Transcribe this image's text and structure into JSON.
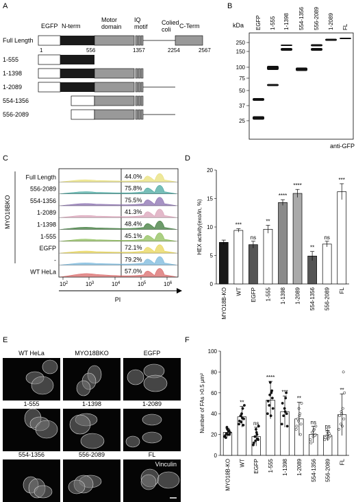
{
  "panel_letters": [
    "A",
    "B",
    "C",
    "D",
    "E",
    "F"
  ],
  "panel_a": {
    "domain_labels": [
      "EGFP",
      "N-term",
      "Motor domain",
      "IQ motif",
      "Colied coli",
      "C-Term"
    ],
    "full_length_label": "Full Length",
    "positions": [
      "1",
      "556",
      "1357",
      "2254",
      "2567"
    ],
    "constructs": [
      "1-555",
      "1-1398",
      "1-2089",
      "554-1356",
      "556-2089"
    ]
  },
  "panel_b": {
    "kda_label": "kDa",
    "markers": [
      "250",
      "150",
      "100",
      "75",
      "50",
      "37",
      "25"
    ],
    "lanes": [
      "EGFP",
      "1-555",
      "1-1398",
      "554-1356",
      "556-2089",
      "1-2089",
      "FL"
    ],
    "footer": "anti-GFP"
  },
  "panel_c": {
    "rows": [
      {
        "label": "Full Length",
        "pct": "44.0%",
        "color": "#e8e07a"
      },
      {
        "label": "556-2089",
        "pct": "75.8%",
        "color": "#4aa8a0"
      },
      {
        "label": "554-1356",
        "pct": "75.5%",
        "color": "#8a6fb0"
      },
      {
        "label": "1-2089",
        "pct": "41.3%",
        "color": "#d9a2b8"
      },
      {
        "label": "1-1398",
        "pct": "48.4%",
        "color": "#3d7a3a"
      },
      {
        "label": "1-555",
        "pct": "45.1%",
        "color": "#8fbf5a"
      },
      {
        "label": "EGFP",
        "pct": "72.1%",
        "color": "#e8d65a"
      },
      {
        "label": "-",
        "pct": "79.2%",
        "color": "#7ab8dc"
      },
      {
        "label": "WT HeLa",
        "pct": "57.0%",
        "color": "#d96a6a"
      }
    ],
    "group_label": "MYO18BKO",
    "x_ticks": [
      "10",
      "10",
      "10",
      "10",
      "10"
    ],
    "x_exps": [
      "2",
      "3",
      "4",
      "5",
      "6"
    ],
    "xlabel": "PI"
  },
  "chart_data": [
    {
      "type": "bar",
      "panel": "D",
      "ylabel": "HEX activity(exo/in, %)",
      "ylim": [
        0,
        20
      ],
      "yticks": [
        "0",
        "5",
        "10",
        "15",
        "20"
      ],
      "categories": [
        "MYO18B-KO",
        "WT",
        "EGFP",
        "1-555",
        "1-1398",
        "1-2089",
        "554-1356",
        "556-2089",
        "FL"
      ],
      "values": [
        7.3,
        9.4,
        6.9,
        9.6,
        14.3,
        15.9,
        4.9,
        7.0,
        16.2
      ],
      "errors": [
        0.4,
        0.3,
        0.6,
        0.7,
        0.5,
        0.7,
        0.8,
        0.5,
        1.4
      ],
      "significance": [
        "",
        "***",
        "ns",
        "**",
        "****",
        "****",
        "**",
        "ns",
        "***"
      ],
      "colors": [
        "#1a1a1a",
        "#ffffff",
        "#555555",
        "#ffffff",
        "#8a8a8a",
        "#aaaaaa",
        "#555555",
        "#ffffff",
        "#ffffff"
      ]
    },
    {
      "type": "scatter",
      "panel": "F",
      "ylabel": "Number of FAs >0.5 μm²",
      "ylim": [
        0,
        100
      ],
      "yticks": [
        "0",
        "20",
        "40",
        "60",
        "80",
        "100"
      ],
      "categories": [
        "MYO18B-KO",
        "WT",
        "EGFP",
        "1-555",
        "1-1398",
        "1-2089",
        "554-1356",
        "556-2089",
        "FL"
      ],
      "means": [
        22,
        37,
        18,
        53,
        42,
        35,
        20,
        19,
        39
      ],
      "errors": [
        4,
        10,
        9,
        18,
        15,
        16,
        8,
        5,
        20
      ],
      "significance": [
        "",
        "**",
        "ns",
        "****",
        "***",
        "**",
        "ns",
        "ns",
        "**"
      ],
      "markers": [
        "circle",
        "square",
        "triangle-up",
        "triangle-down",
        "diamond",
        "circle-open",
        "square-open",
        "triangle-open",
        "triangle-down-open"
      ],
      "points": [
        [
          18,
          20,
          23,
          25,
          21,
          19,
          22,
          24,
          20,
          27,
          17
        ],
        [
          30,
          35,
          45,
          40,
          38,
          33,
          48,
          29,
          36,
          32
        ],
        [
          10,
          15,
          20,
          25,
          18,
          12,
          28,
          16,
          22,
          14
        ],
        [
          40,
          55,
          60,
          70,
          48,
          52,
          45,
          62,
          38,
          58
        ],
        [
          30,
          40,
          55,
          45,
          38,
          50,
          28,
          60,
          42
        ],
        [
          25,
          30,
          40,
          45,
          35,
          28,
          50,
          20,
          38,
          33
        ],
        [
          15,
          20,
          25,
          18,
          22,
          12,
          28,
          19,
          24
        ],
        [
          15,
          18,
          22,
          20,
          25,
          17,
          19,
          21,
          16,
          23
        ],
        [
          25,
          35,
          45,
          40,
          30,
          38,
          60,
          80,
          28,
          42
        ]
      ]
    }
  ],
  "panel_e": {
    "labels": [
      "WT HeLa",
      "MYO18BKO",
      "EGFP",
      "1-555",
      "1-1398",
      "1-2089",
      "554-1356",
      "556-2089",
      "FL"
    ],
    "stain_label": "Vinculin"
  }
}
